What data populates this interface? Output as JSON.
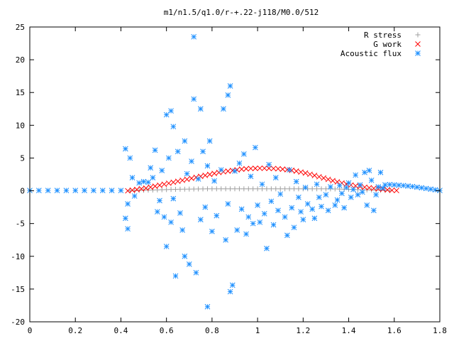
{
  "chart_data": {
    "type": "scatter",
    "title": "m1/n1.5/q1.0/r-+.22-j118/M0.0/512",
    "xlabel": "",
    "ylabel": "",
    "xlim": [
      0,
      1.8
    ],
    "ylim": [
      -20,
      25
    ],
    "x_ticks": [
      0,
      0.2,
      0.4,
      0.6,
      0.8,
      1,
      1.2,
      1.4,
      1.6,
      1.8
    ],
    "x_tick_labels": [
      "0",
      "0.2",
      "0.4",
      "0.6",
      "0.8",
      "1",
      "1.2",
      "1.4",
      "1.6",
      "1.8"
    ],
    "y_ticks": [
      -20,
      -15,
      -10,
      -5,
      0,
      5,
      10,
      15,
      20,
      25
    ],
    "y_tick_labels": [
      "-20",
      "-15",
      "-10",
      "-5",
      "0",
      "5",
      "10",
      "15",
      "20",
      "25"
    ],
    "grid": false,
    "legend_position": "top-right",
    "series": [
      {
        "name": "R stress",
        "marker": "plus",
        "color": "#a0a0a0",
        "points": [
          [
            0.44,
            0.0
          ],
          [
            0.46,
            0.0
          ],
          [
            0.48,
            0.05
          ],
          [
            0.5,
            0.08
          ],
          [
            0.52,
            0.1
          ],
          [
            0.54,
            0.12
          ],
          [
            0.56,
            0.14
          ],
          [
            0.58,
            0.16
          ],
          [
            0.6,
            0.18
          ],
          [
            0.62,
            0.2
          ],
          [
            0.64,
            0.22
          ],
          [
            0.66,
            0.24
          ],
          [
            0.68,
            0.25
          ],
          [
            0.7,
            0.26
          ],
          [
            0.72,
            0.27
          ],
          [
            0.74,
            0.28
          ],
          [
            0.76,
            0.29
          ],
          [
            0.78,
            0.3
          ],
          [
            0.8,
            0.3
          ],
          [
            0.82,
            0.3
          ],
          [
            0.84,
            0.3
          ],
          [
            0.86,
            0.3
          ],
          [
            0.88,
            0.3
          ],
          [
            0.9,
            0.3
          ],
          [
            0.92,
            0.3
          ],
          [
            0.94,
            0.3
          ],
          [
            0.96,
            0.3
          ],
          [
            0.98,
            0.3
          ],
          [
            1.0,
            0.3
          ],
          [
            1.02,
            0.3
          ],
          [
            1.04,
            0.3
          ],
          [
            1.06,
            0.3
          ],
          [
            1.08,
            0.3
          ],
          [
            1.1,
            0.3
          ],
          [
            1.12,
            0.3
          ],
          [
            1.14,
            0.3
          ],
          [
            1.16,
            0.3
          ],
          [
            1.18,
            0.3
          ],
          [
            1.2,
            0.3
          ],
          [
            1.22,
            0.3
          ],
          [
            1.24,
            0.3
          ],
          [
            1.26,
            0.3
          ],
          [
            1.28,
            0.3
          ],
          [
            1.3,
            0.3
          ],
          [
            1.32,
            0.29
          ],
          [
            1.34,
            0.28
          ],
          [
            1.36,
            0.26
          ],
          [
            1.38,
            0.24
          ],
          [
            1.4,
            0.22
          ],
          [
            1.42,
            0.2
          ],
          [
            1.44,
            0.18
          ],
          [
            1.46,
            0.16
          ],
          [
            1.48,
            0.14
          ],
          [
            1.5,
            0.12
          ],
          [
            1.52,
            0.1
          ],
          [
            1.54,
            0.08
          ],
          [
            1.56,
            0.06
          ],
          [
            1.58,
            0.04
          ]
        ]
      },
      {
        "name": "G work",
        "marker": "cross",
        "color": "#ff0000",
        "points": [
          [
            0.43,
            0.0
          ],
          [
            0.45,
            0.1
          ],
          [
            0.47,
            0.2
          ],
          [
            0.49,
            0.3
          ],
          [
            0.51,
            0.4
          ],
          [
            0.53,
            0.55
          ],
          [
            0.55,
            0.7
          ],
          [
            0.57,
            0.85
          ],
          [
            0.59,
            1.0
          ],
          [
            0.61,
            1.15
          ],
          [
            0.63,
            1.3
          ],
          [
            0.65,
            1.45
          ],
          [
            0.67,
            1.6
          ],
          [
            0.69,
            1.75
          ],
          [
            0.71,
            1.9
          ],
          [
            0.73,
            2.05
          ],
          [
            0.75,
            2.2
          ],
          [
            0.77,
            2.35
          ],
          [
            0.79,
            2.5
          ],
          [
            0.81,
            2.65
          ],
          [
            0.83,
            2.8
          ],
          [
            0.85,
            2.9
          ],
          [
            0.87,
            3.0
          ],
          [
            0.89,
            3.1
          ],
          [
            0.91,
            3.2
          ],
          [
            0.93,
            3.3
          ],
          [
            0.95,
            3.35
          ],
          [
            0.97,
            3.4
          ],
          [
            0.99,
            3.42
          ],
          [
            1.01,
            3.44
          ],
          [
            1.03,
            3.44
          ],
          [
            1.05,
            3.42
          ],
          [
            1.07,
            3.4
          ],
          [
            1.09,
            3.36
          ],
          [
            1.11,
            3.3
          ],
          [
            1.13,
            3.22
          ],
          [
            1.15,
            3.12
          ],
          [
            1.17,
            3.0
          ],
          [
            1.19,
            2.86
          ],
          [
            1.21,
            2.7
          ],
          [
            1.23,
            2.52
          ],
          [
            1.25,
            2.34
          ],
          [
            1.27,
            2.14
          ],
          [
            1.29,
            1.94
          ],
          [
            1.31,
            1.74
          ],
          [
            1.33,
            1.54
          ],
          [
            1.35,
            1.36
          ],
          [
            1.37,
            1.18
          ],
          [
            1.39,
            1.02
          ],
          [
            1.41,
            0.88
          ],
          [
            1.43,
            0.76
          ],
          [
            1.45,
            0.64
          ],
          [
            1.47,
            0.54
          ],
          [
            1.49,
            0.46
          ],
          [
            1.51,
            0.38
          ],
          [
            1.53,
            0.3
          ],
          [
            1.55,
            0.22
          ],
          [
            1.57,
            0.14
          ],
          [
            1.59,
            0.08
          ],
          [
            1.61,
            0.04
          ]
        ]
      },
      {
        "name": "Acoustic flux",
        "marker": "star",
        "color": "#1e90ff",
        "points": [
          [
            0.0,
            0.05
          ],
          [
            0.04,
            0.05
          ],
          [
            0.08,
            0.05
          ],
          [
            0.12,
            0.05
          ],
          [
            0.16,
            0.05
          ],
          [
            0.2,
            0.05
          ],
          [
            0.24,
            0.05
          ],
          [
            0.28,
            0.05
          ],
          [
            0.32,
            0.05
          ],
          [
            0.36,
            0.05
          ],
          [
            0.4,
            0.05
          ],
          [
            0.42,
            -4.2
          ],
          [
            0.42,
            6.4
          ],
          [
            0.43,
            -5.8
          ],
          [
            0.43,
            -2.0
          ],
          [
            0.44,
            5.0
          ],
          [
            0.45,
            2.0
          ],
          [
            0.46,
            -0.8
          ],
          [
            0.48,
            1.2
          ],
          [
            0.5,
            1.4
          ],
          [
            0.52,
            1.3
          ],
          [
            0.53,
            3.5
          ],
          [
            0.54,
            2.0
          ],
          [
            0.55,
            6.2
          ],
          [
            0.56,
            -3.2
          ],
          [
            0.57,
            -1.5
          ],
          [
            0.58,
            3.1
          ],
          [
            0.59,
            -4.0
          ],
          [
            0.6,
            11.6
          ],
          [
            0.6,
            -8.5
          ],
          [
            0.61,
            5.0
          ],
          [
            0.62,
            12.2
          ],
          [
            0.62,
            -4.8
          ],
          [
            0.63,
            9.8
          ],
          [
            0.63,
            -1.2
          ],
          [
            0.64,
            -13.0
          ],
          [
            0.65,
            6.0
          ],
          [
            0.66,
            -3.4
          ],
          [
            0.67,
            -6.0
          ],
          [
            0.68,
            7.6
          ],
          [
            0.68,
            -10.0
          ],
          [
            0.69,
            2.6
          ],
          [
            0.7,
            -11.2
          ],
          [
            0.71,
            4.5
          ],
          [
            0.72,
            23.5
          ],
          [
            0.72,
            14.0
          ],
          [
            0.73,
            -12.5
          ],
          [
            0.74,
            1.8
          ],
          [
            0.75,
            12.5
          ],
          [
            0.75,
            -4.4
          ],
          [
            0.76,
            6.0
          ],
          [
            0.77,
            -2.5
          ],
          [
            0.78,
            -17.7
          ],
          [
            0.78,
            3.8
          ],
          [
            0.79,
            7.6
          ],
          [
            0.8,
            -6.2
          ],
          [
            0.81,
            1.5
          ],
          [
            0.82,
            -3.8
          ],
          [
            0.84,
            3.2
          ],
          [
            0.85,
            12.5
          ],
          [
            0.86,
            -7.5
          ],
          [
            0.87,
            14.6
          ],
          [
            0.87,
            -2.0
          ],
          [
            0.88,
            16.0
          ],
          [
            0.88,
            -15.4
          ],
          [
            0.89,
            -14.4
          ],
          [
            0.9,
            3.0
          ],
          [
            0.91,
            -6.0
          ],
          [
            0.92,
            4.2
          ],
          [
            0.93,
            -2.8
          ],
          [
            0.94,
            5.6
          ],
          [
            0.95,
            -6.6
          ],
          [
            0.96,
            -4.0
          ],
          [
            0.97,
            2.2
          ],
          [
            0.98,
            -5.0
          ],
          [
            0.99,
            6.6
          ],
          [
            1.0,
            -2.2
          ],
          [
            1.01,
            -4.8
          ],
          [
            1.02,
            1.0
          ],
          [
            1.03,
            -3.5
          ],
          [
            1.04,
            -8.8
          ],
          [
            1.05,
            4.0
          ],
          [
            1.06,
            -1.6
          ],
          [
            1.07,
            -5.2
          ],
          [
            1.08,
            2.0
          ],
          [
            1.09,
            -3.0
          ],
          [
            1.1,
            -0.5
          ],
          [
            1.12,
            -4.0
          ],
          [
            1.13,
            -6.8
          ],
          [
            1.14,
            3.2
          ],
          [
            1.15,
            -2.6
          ],
          [
            1.16,
            -5.6
          ],
          [
            1.17,
            1.4
          ],
          [
            1.18,
            -1.0
          ],
          [
            1.19,
            -3.2
          ],
          [
            1.2,
            -4.4
          ],
          [
            1.21,
            0.5
          ],
          [
            1.22,
            -2.0
          ],
          [
            1.24,
            -2.8
          ],
          [
            1.25,
            -4.2
          ],
          [
            1.26,
            1.0
          ],
          [
            1.27,
            -1.0
          ],
          [
            1.28,
            -2.4
          ],
          [
            1.3,
            -0.6
          ],
          [
            1.31,
            -3.0
          ],
          [
            1.32,
            0.6
          ],
          [
            1.34,
            -2.2
          ],
          [
            1.35,
            -1.4
          ],
          [
            1.36,
            0.8
          ],
          [
            1.37,
            -0.4
          ],
          [
            1.38,
            -2.6
          ],
          [
            1.39,
            0.5
          ],
          [
            1.4,
            1.2
          ],
          [
            1.41,
            -1.0
          ],
          [
            1.42,
            0.2
          ],
          [
            1.43,
            2.4
          ],
          [
            1.44,
            -0.6
          ],
          [
            1.45,
            0.9
          ],
          [
            1.46,
            -0.2
          ],
          [
            1.47,
            2.8
          ],
          [
            1.48,
            -2.2
          ],
          [
            1.49,
            3.1
          ],
          [
            1.5,
            1.6
          ],
          [
            1.51,
            -3.0
          ],
          [
            1.52,
            -0.6
          ],
          [
            1.53,
            0.6
          ],
          [
            1.54,
            2.8
          ],
          [
            1.55,
            0.4
          ],
          [
            1.56,
            0.9
          ],
          [
            1.58,
            0.95
          ],
          [
            1.6,
            0.9
          ],
          [
            1.62,
            0.85
          ],
          [
            1.64,
            0.8
          ],
          [
            1.66,
            0.72
          ],
          [
            1.68,
            0.65
          ],
          [
            1.7,
            0.55
          ],
          [
            1.72,
            0.45
          ],
          [
            1.74,
            0.35
          ],
          [
            1.76,
            0.25
          ],
          [
            1.78,
            0.15
          ],
          [
            1.8,
            0.05
          ]
        ]
      }
    ]
  }
}
